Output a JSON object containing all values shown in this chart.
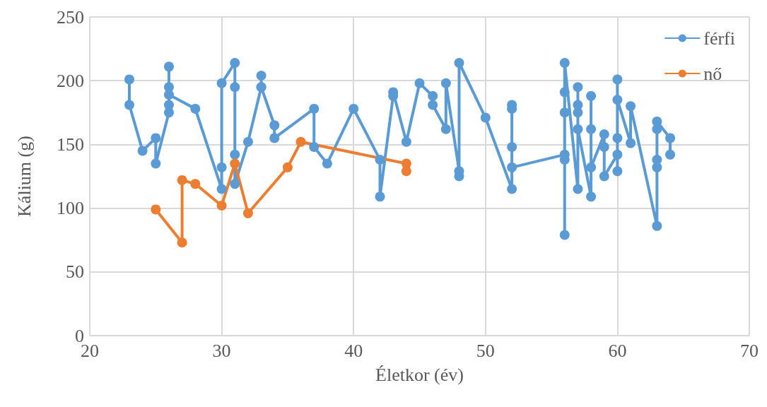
{
  "chart_data": {
    "type": "line",
    "xlabel": "Életkor (év)",
    "ylabel": "Kálium (g)",
    "xlim": [
      20,
      70
    ],
    "xticks": [
      20,
      30,
      40,
      50,
      60,
      70
    ],
    "ylim": [
      0,
      250
    ],
    "yticks": [
      0,
      50,
      100,
      150,
      200,
      250
    ],
    "grid": true,
    "legend": "top right",
    "marker": "circle",
    "line_style": "solid",
    "series": [
      {
        "name": "férfi",
        "color": "#5b9bd5",
        "x": [
          23,
          23,
          24,
          25,
          25,
          26,
          26,
          26,
          26,
          26,
          28,
          30,
          30,
          30,
          31,
          31,
          31,
          31,
          32,
          33,
          33,
          33,
          34,
          34,
          37,
          37,
          38,
          40,
          42,
          42,
          43,
          43,
          44,
          45,
          46,
          46,
          47,
          47,
          48,
          48,
          48,
          50,
          52,
          52,
          52,
          52,
          52,
          56,
          56,
          56,
          56,
          56,
          56,
          57,
          57,
          57,
          57,
          57,
          58,
          58,
          58,
          58,
          59,
          59,
          59,
          60,
          60,
          60,
          60,
          60,
          61,
          61,
          63,
          63,
          63,
          63,
          63,
          64,
          64
        ],
        "values": [
          201,
          181,
          145,
          155,
          135,
          175,
          181,
          211,
          195,
          189,
          178,
          115,
          132,
          198,
          214,
          195,
          142,
          119,
          152,
          195,
          204,
          195,
          165,
          155,
          178,
          148,
          135,
          178,
          138,
          109,
          188,
          191,
          152,
          198,
          188,
          181,
          162,
          198,
          129,
          125,
          214,
          171,
          115,
          181,
          178,
          148,
          132,
          142,
          138,
          79,
          175,
          191,
          214,
          115,
          195,
          181,
          175,
          162,
          109,
          188,
          162,
          132,
          158,
          148,
          125,
          142,
          129,
          155,
          201,
          185,
          151,
          180,
          86,
          132,
          138,
          162,
          168,
          155,
          142
        ]
      },
      {
        "name": "nő",
        "color": "#ed7d31",
        "x": [
          25,
          27,
          27,
          28,
          30,
          31,
          32,
          35,
          36,
          44,
          44
        ],
        "values": [
          99,
          73,
          122,
          119,
          102,
          135,
          96,
          132,
          152,
          135,
          129
        ]
      }
    ]
  }
}
